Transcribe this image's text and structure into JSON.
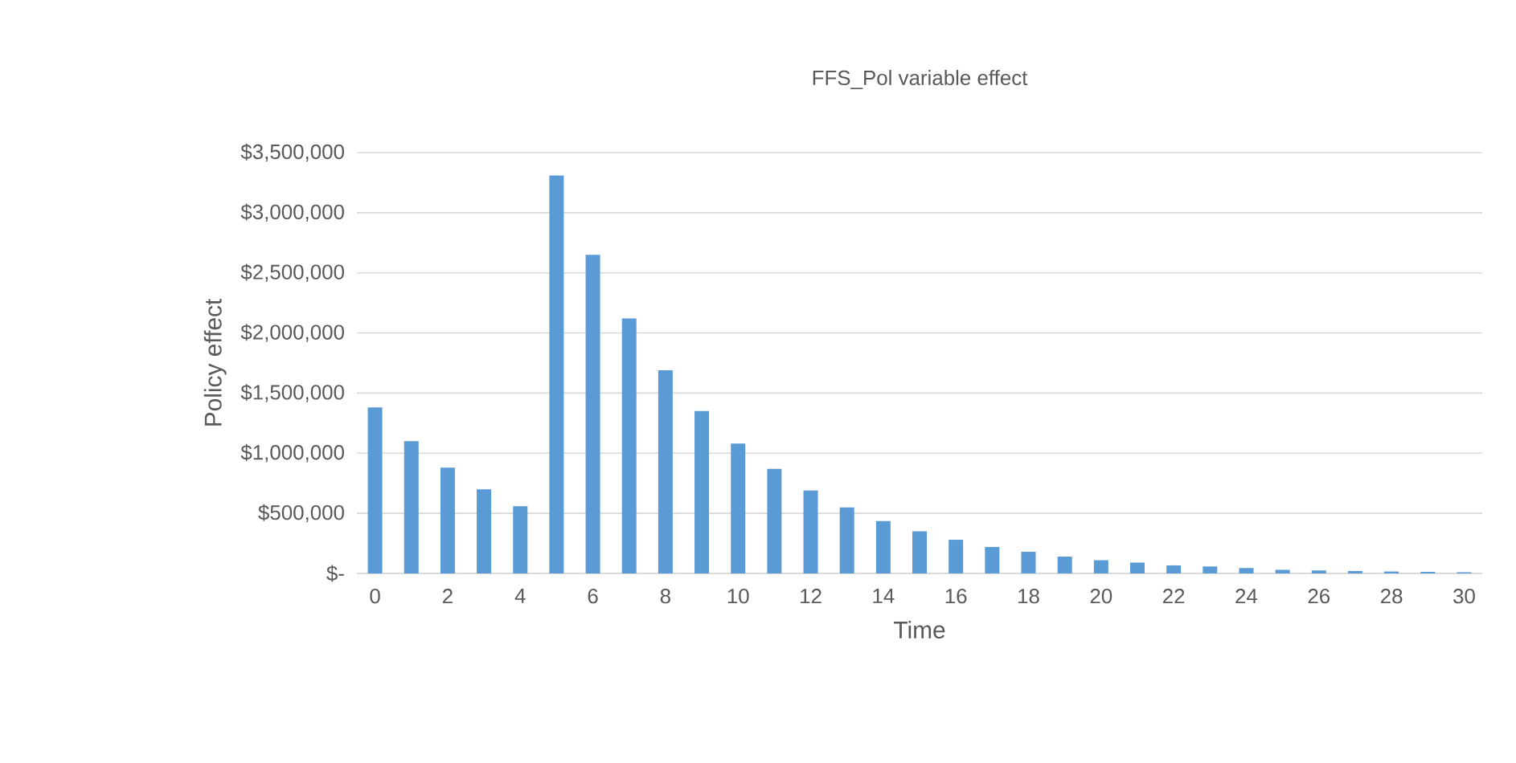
{
  "chart_data": {
    "type": "bar",
    "title": "FFS_Pol variable effect",
    "xlabel": "Time",
    "ylabel": "Policy effect",
    "categories": [
      "0",
      null,
      "2",
      null,
      "4",
      null,
      "6",
      null,
      "8",
      null,
      "10",
      null,
      "12",
      null,
      "14",
      null,
      "16",
      null,
      "18",
      null,
      "20",
      null,
      "22",
      null,
      "24",
      null,
      "26",
      null,
      "28",
      null,
      "30"
    ],
    "values": [
      1380000,
      1100000,
      880000,
      700000,
      560000,
      3310000,
      2650000,
      2120000,
      1690000,
      1350000,
      1080000,
      870000,
      690000,
      550000,
      435000,
      350000,
      280000,
      220000,
      180000,
      140000,
      110000,
      90000,
      67000,
      58000,
      45000,
      30000,
      25000,
      20000,
      16000,
      13000,
      10000
    ],
    "color": "#5b9bd5",
    "ylim": [
      0,
      3500000
    ],
    "yticks": [
      {
        "value": 0,
        "label": "$-"
      },
      {
        "value": 500000,
        "label": "$500,000"
      },
      {
        "value": 1000000,
        "label": "$1,000,000"
      },
      {
        "value": 1500000,
        "label": "$1,500,000"
      },
      {
        "value": 2000000,
        "label": "$2,000,000"
      },
      {
        "value": 2500000,
        "label": "$2,500,000"
      },
      {
        "value": 3000000,
        "label": "$3,000,000"
      },
      {
        "value": 3500000,
        "label": "$3,500,000"
      }
    ],
    "grid": "y"
  }
}
